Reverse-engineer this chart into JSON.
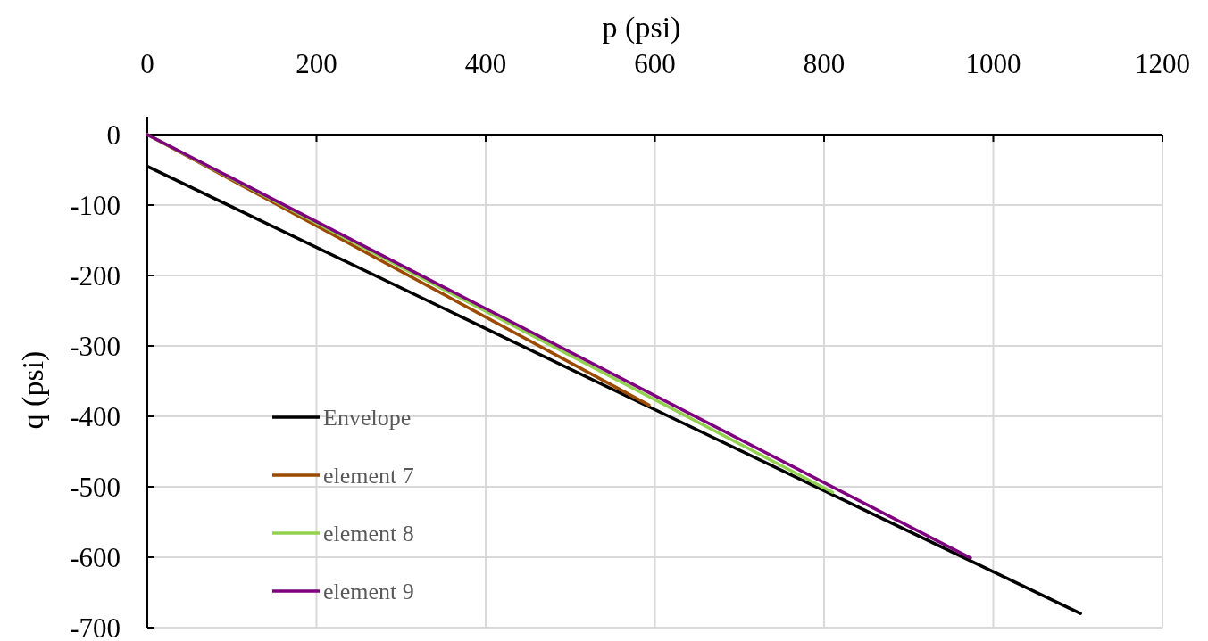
{
  "chart_data": {
    "type": "line",
    "xlabel": "p (psi)",
    "ylabel": "q (psi)",
    "xlim": [
      0,
      1200
    ],
    "ylim": [
      -700,
      0
    ],
    "xticks": [
      0,
      200,
      400,
      600,
      800,
      1000,
      1200
    ],
    "yticks": [
      -700,
      -600,
      -500,
      -400,
      -300,
      -200,
      -100,
      0
    ],
    "grid": true,
    "legend": "bottom left",
    "marker": "none",
    "series": [
      {
        "name": "Envelope",
        "color": "#000000",
        "x": [
          0,
          1103
        ],
        "values": [
          -45,
          -680
        ]
      },
      {
        "name": "element 7",
        "color": "#9c4a00",
        "x": [
          0,
          593
        ],
        "values": [
          0,
          -384
        ]
      },
      {
        "name": "element 8",
        "color": "#92d050",
        "x": [
          0,
          810
        ],
        "values": [
          0,
          -508
        ]
      },
      {
        "name": "element 9",
        "color": "#7f007f",
        "x": [
          0,
          973
        ],
        "values": [
          0,
          -601
        ]
      }
    ]
  }
}
